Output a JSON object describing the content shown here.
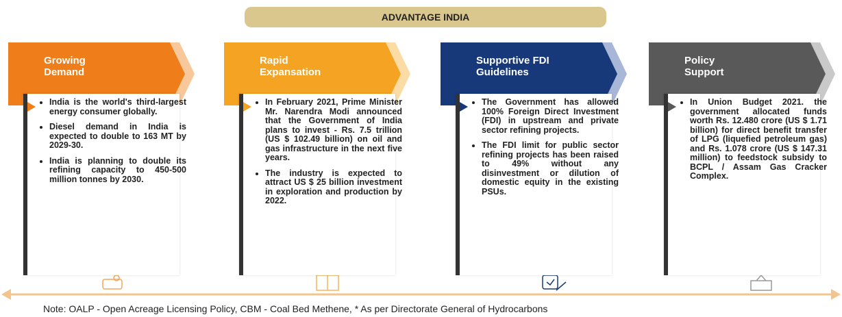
{
  "header": {
    "title": "ADVANTAGE INDIA"
  },
  "columns": [
    {
      "title_lines": [
        "Growing",
        "Demand"
      ],
      "color": "#ee7d1a",
      "light": "#f8c89a",
      "bullets": [
        "India is the world's third-largest energy consumer globally.",
        "Diesel demand in India is expected to double to 163 MT by 2029-30.",
        "India is planning to double its refining capacity to 450-500 million tonnes by 2030."
      ]
    },
    {
      "title_lines": [
        "Rapid",
        "Expansation"
      ],
      "color": "#f5a322",
      "light": "#fbdca4",
      "bullets": [
        "In February 2021, Prime Minister Mr. Narendra Modi announced that the Government of India plans to invest - Rs. 7.5 trillion (US $ 102.49 billion) on oil and gas infrastructure in the next five years.",
        "The industry is expected to attract US $ 25 billion investment in exploration and production by 2022."
      ]
    },
    {
      "title_lines": [
        "Supportive FDI",
        "Guidelines"
      ],
      "color": "#17397a",
      "light": "#a8b6d8",
      "bullets": [
        "The Government has allowed 100% Foreign Direct Investment (FDI) in upstream and private sector refining projects.",
        "The FDI limit for public sector refining projects has been raised to 49% without any disinvestment or dilution of domestic equity in the existing PSUs."
      ]
    },
    {
      "title_lines": [
        "Policy",
        "Support"
      ],
      "color": "#595959",
      "light": "#c9c9c9",
      "bullets": [
        "In Union Budget 2021. the government allocated funds worth Rs. 12.480 crore (US $ 1.71 billion) for direct benefit transfer of LPG (liquefied petroleum gas) and Rs. 1.078 crore (US $ 147.31 million) to feedstock subsidy to BCPL / Assam Gas Cracker Complex."
      ]
    }
  ],
  "note": "Note: OALP - Open Acreage Licensing Policy, CBM - Coal Bed Methene, * As per Directorate General of Hydrocarbons"
}
